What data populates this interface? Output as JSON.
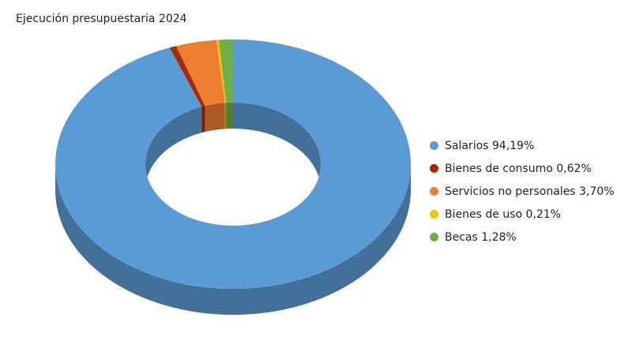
{
  "chart_data": {
    "type": "pie",
    "variant": "3d-donut",
    "title": "Ejecución presupuestaria 2024",
    "legend_position": "right",
    "slices": [
      {
        "label": "Salarios 94,19%",
        "value": 94.19,
        "color": "#5b9bd5"
      },
      {
        "label": "Bienes de consumo 0,62%",
        "value": 0.62,
        "color": "#a52a0a"
      },
      {
        "label": "Servicios no personales 3,70%",
        "value": 3.7,
        "color": "#ed7d31"
      },
      {
        "label": "Bienes de uso 0,21%",
        "value": 0.21,
        "color": "#f5c400"
      },
      {
        "label": "Becas 1,28%",
        "value": 1.28,
        "color": "#70ad47"
      }
    ]
  }
}
